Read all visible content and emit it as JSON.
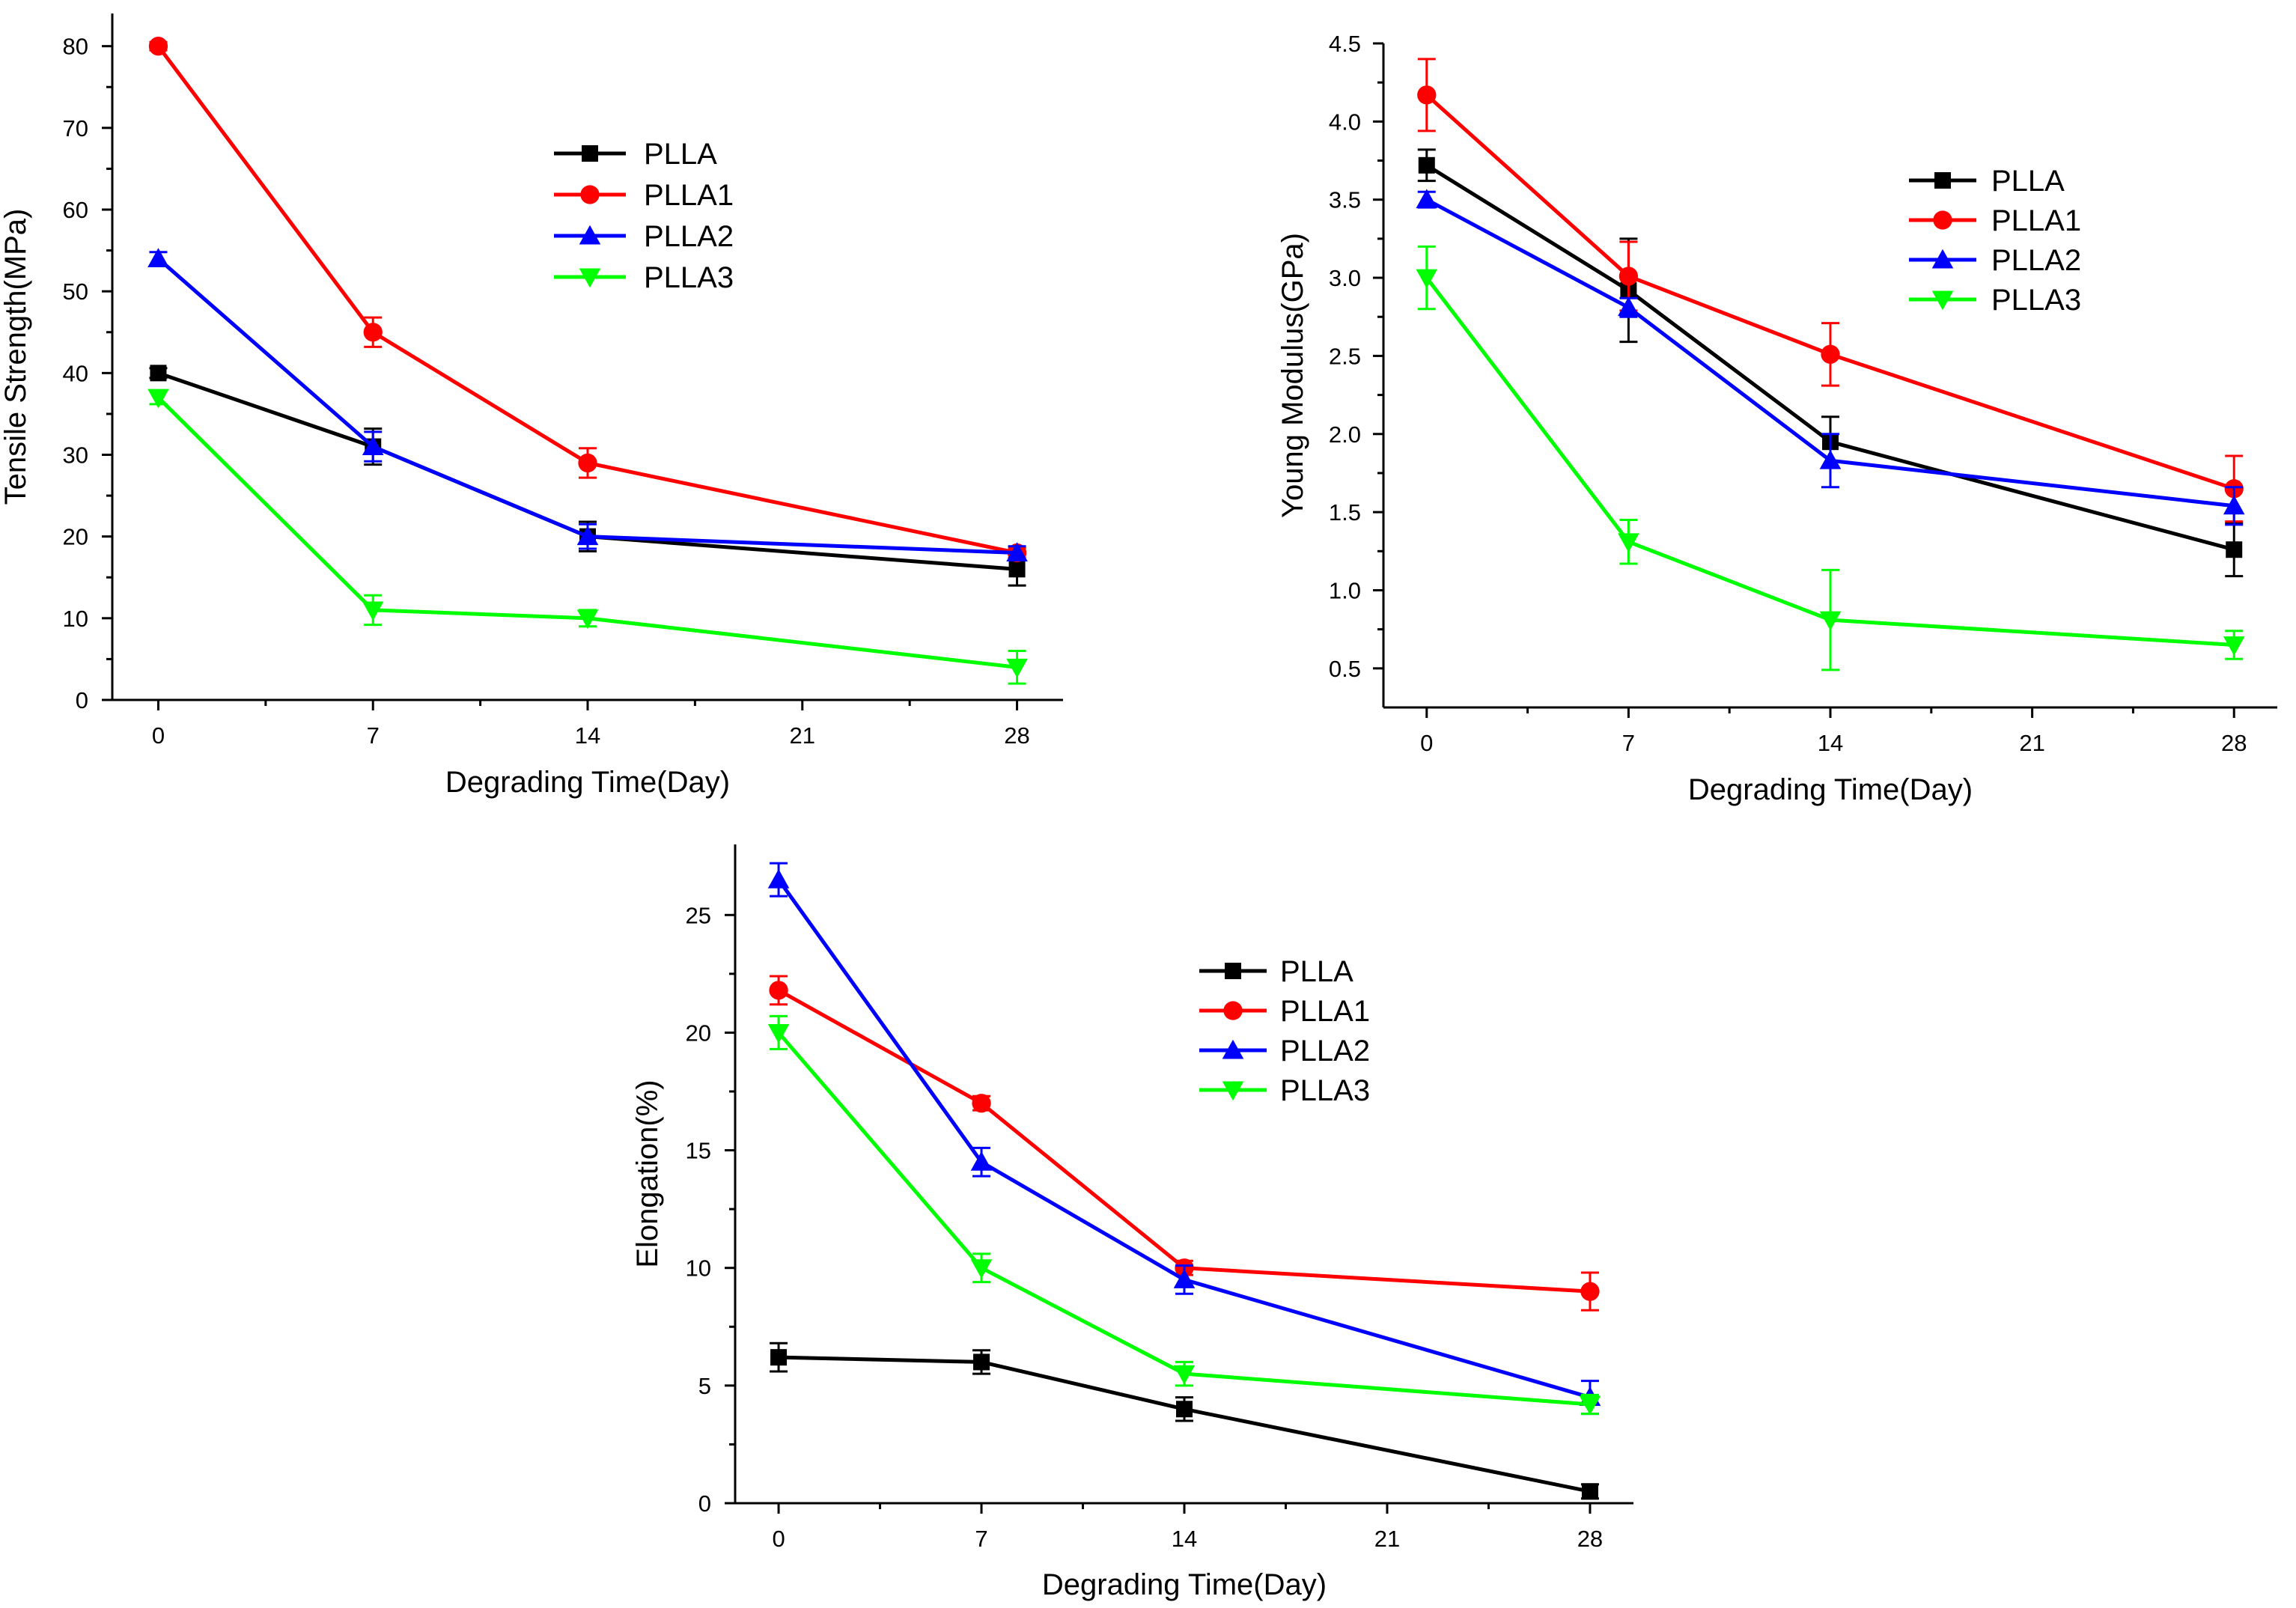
{
  "chart_data": [
    {
      "type": "line",
      "title": "",
      "xlabel": "Degrading Time(Day)",
      "ylabel": "Tensile Strength(MPa)",
      "xlim": [
        -1.5,
        29.5
      ],
      "ylim": [
        0,
        84
      ],
      "x_ticks": [
        0,
        7,
        14,
        21,
        28
      ],
      "y_ticks": [
        0,
        10,
        20,
        30,
        40,
        50,
        60,
        70,
        80
      ],
      "legend_position": "upper-middle",
      "x": [
        0,
        7,
        14,
        28
      ],
      "series": [
        {
          "name": "PLLA",
          "color": "#000000",
          "marker": "square",
          "values": [
            40,
            31,
            20,
            16
          ],
          "errors": [
            0.6,
            2.2,
            1.8,
            2.0
          ]
        },
        {
          "name": "PLLA1",
          "color": "#ff0000",
          "marker": "circle",
          "values": [
            80,
            45,
            29,
            18
          ],
          "errors": [
            0.5,
            1.8,
            1.8,
            0.6
          ]
        },
        {
          "name": "PLLA2",
          "color": "#0000ff",
          "marker": "triangle-up",
          "values": [
            54,
            31,
            20,
            18
          ],
          "errors": [
            0.8,
            1.8,
            1.5,
            0.8
          ]
        },
        {
          "name": "PLLA3",
          "color": "#00ff00",
          "marker": "triangle-down",
          "values": [
            37,
            11,
            10,
            4
          ],
          "errors": [
            0.8,
            1.8,
            1.0,
            2.0
          ]
        }
      ]
    },
    {
      "type": "line",
      "title": "",
      "xlabel": "Degrading Time(Day)",
      "ylabel": "Young Modulus(GPa)",
      "xlim": [
        -1.5,
        29.5
      ],
      "ylim": [
        0.25,
        4.5
      ],
      "x_ticks": [
        0,
        7,
        14,
        21,
        28
      ],
      "y_ticks": [
        0.5,
        1.0,
        1.5,
        2.0,
        2.5,
        3.0,
        3.5,
        4.0,
        4.5
      ],
      "y_tick_labels": [
        "0.5",
        "1.0",
        "1.5",
        "2.0",
        "2.5",
        "3.0",
        "3.5",
        "4.0",
        "4.5"
      ],
      "legend_position": "upper-right",
      "x": [
        0,
        7,
        14,
        28
      ],
      "series": [
        {
          "name": "PLLA",
          "color": "#000000",
          "marker": "square",
          "values": [
            3.72,
            2.92,
            1.95,
            1.26
          ],
          "errors": [
            0.1,
            0.33,
            0.16,
            0.17
          ]
        },
        {
          "name": "PLLA1",
          "color": "#ff0000",
          "marker": "circle",
          "values": [
            4.17,
            3.01,
            2.51,
            1.65
          ],
          "errors": [
            0.23,
            0.22,
            0.2,
            0.21
          ]
        },
        {
          "name": "PLLA2",
          "color": "#0000ff",
          "marker": "triangle-up",
          "values": [
            3.5,
            2.81,
            1.83,
            1.54
          ],
          "errors": [
            0.05,
            0.06,
            0.17,
            0.12
          ]
        },
        {
          "name": "PLLA3",
          "color": "#00ff00",
          "marker": "triangle-down",
          "values": [
            3.0,
            1.31,
            0.81,
            0.65
          ],
          "errors": [
            0.2,
            0.14,
            0.32,
            0.09
          ]
        }
      ]
    },
    {
      "type": "line",
      "title": "",
      "xlabel": "Degrading Time(Day)",
      "ylabel": "Elongation(%)",
      "xlim": [
        -1.5,
        29.5
      ],
      "ylim": [
        0,
        28
      ],
      "x_ticks": [
        0,
        7,
        14,
        21,
        28
      ],
      "y_ticks": [
        0,
        5,
        10,
        15,
        20,
        25
      ],
      "legend_position": "upper-right",
      "x": [
        0,
        7,
        14,
        28
      ],
      "series": [
        {
          "name": "PLLA",
          "color": "#000000",
          "marker": "square",
          "values": [
            6.2,
            6.0,
            4.0,
            0.5
          ],
          "errors": [
            0.6,
            0.5,
            0.5,
            0.3
          ]
        },
        {
          "name": "PLLA1",
          "color": "#ff0000",
          "marker": "circle",
          "values": [
            21.8,
            17.0,
            10.0,
            9.0
          ],
          "errors": [
            0.6,
            0.3,
            0.3,
            0.8
          ]
        },
        {
          "name": "PLLA2",
          "color": "#0000ff",
          "marker": "triangle-up",
          "values": [
            26.5,
            14.5,
            9.5,
            4.5
          ],
          "errors": [
            0.7,
            0.6,
            0.6,
            0.7
          ]
        },
        {
          "name": "PLLA3",
          "color": "#00ff00",
          "marker": "triangle-down",
          "values": [
            20.0,
            10.0,
            5.5,
            4.2
          ],
          "errors": [
            0.7,
            0.6,
            0.5,
            0.4
          ]
        }
      ]
    }
  ]
}
